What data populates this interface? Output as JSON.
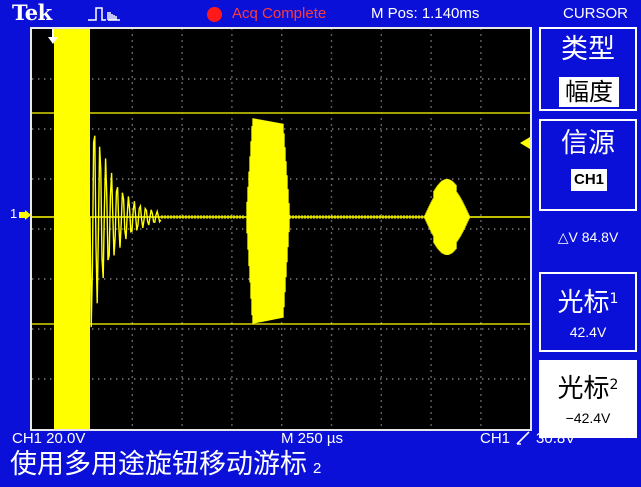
{
  "header": {
    "brand": "Tek",
    "trigger_icon": "trigger-pulse-icon",
    "acq_status": "Acq Complete",
    "m_pos": "M Pos: 1.140ms",
    "menu_title": "CURSOR"
  },
  "menu": {
    "type_title": "类型",
    "type_value": "幅度",
    "source_title": "信源",
    "source_value": "CH1",
    "delta_value": "△V 84.8V",
    "cursor1_title": "光标",
    "cursor1_index": "1",
    "cursor1_value": "42.4V",
    "cursor2_title": "光标",
    "cursor2_index": "2",
    "cursor2_value": "−42.4V"
  },
  "footer": {
    "ch_scale": "CH1  20.0V",
    "time_scale": "M 250 µs",
    "trig_source": "CH1",
    "trig_level": "30.8V",
    "hint_text": "使用多用途旋钮移动游标",
    "hint_number": "2"
  },
  "markers": {
    "ch1_label": "1"
  },
  "colors": {
    "background": "#0a10d8",
    "graticule": "#000000",
    "trace": "#ffff00",
    "acq_status": "#ff3a3a"
  }
}
